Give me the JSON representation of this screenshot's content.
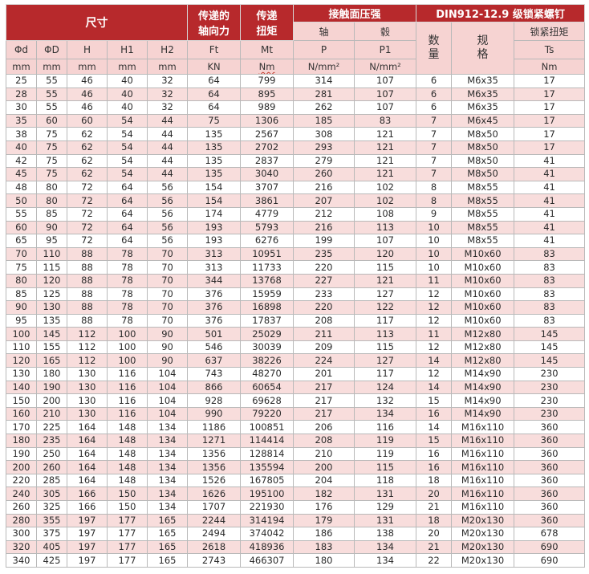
{
  "header": {
    "dims": "尺寸",
    "axial_force_1": "传递的",
    "axial_force_2": "轴向力",
    "torque_1": "传递",
    "torque_2": "扭矩",
    "contact_pressure": "接触面压强",
    "screw_title": "DIN912-12.9 级锁紧螺钉",
    "shaft": "轴",
    "hub": "毂",
    "qty_1": "数",
    "qty_2": "量",
    "spec_1": "规",
    "spec_2": "格",
    "lock_torque": "锁紧扭矩"
  },
  "columns": [
    "Φd",
    "ΦD",
    "H",
    "H1",
    "H2",
    "Ft",
    "Mt",
    "P",
    "P1",
    "Ts"
  ],
  "units": [
    "mm",
    "mm",
    "mm",
    "mm",
    "mm",
    "KN",
    "Nm",
    "N/mm²",
    "N/mm²",
    "Nm"
  ],
  "rows": [
    [
      "25",
      "55",
      "46",
      "40",
      "32",
      "64",
      "799",
      "314",
      "107",
      "6",
      "M6x35",
      "17"
    ],
    [
      "28",
      "55",
      "46",
      "40",
      "32",
      "64",
      "895",
      "281",
      "107",
      "6",
      "M6x35",
      "17"
    ],
    [
      "30",
      "55",
      "46",
      "40",
      "32",
      "64",
      "989",
      "262",
      "107",
      "6",
      "M6x35",
      "17"
    ],
    [
      "35",
      "60",
      "60",
      "54",
      "44",
      "75",
      "1306",
      "185",
      "83",
      "7",
      "M6x45",
      "17"
    ],
    [
      "38",
      "75",
      "62",
      "54",
      "44",
      "135",
      "2567",
      "308",
      "121",
      "7",
      "M8x50",
      "17"
    ],
    [
      "40",
      "75",
      "62",
      "54",
      "44",
      "135",
      "2702",
      "293",
      "121",
      "7",
      "M8x50",
      "17"
    ],
    [
      "42",
      "75",
      "62",
      "54",
      "44",
      "135",
      "2837",
      "279",
      "121",
      "7",
      "M8x50",
      "41"
    ],
    [
      "45",
      "75",
      "62",
      "54",
      "44",
      "135",
      "3040",
      "260",
      "121",
      "7",
      "M8x50",
      "41"
    ],
    [
      "48",
      "80",
      "72",
      "64",
      "56",
      "154",
      "3707",
      "216",
      "102",
      "8",
      "M8x55",
      "41"
    ],
    [
      "50",
      "80",
      "72",
      "64",
      "56",
      "154",
      "3861",
      "207",
      "102",
      "8",
      "M8x55",
      "41"
    ],
    [
      "55",
      "85",
      "72",
      "64",
      "56",
      "174",
      "4779",
      "212",
      "108",
      "9",
      "M8x55",
      "41"
    ],
    [
      "60",
      "90",
      "72",
      "64",
      "56",
      "193",
      "5793",
      "216",
      "113",
      "10",
      "M8x55",
      "41"
    ],
    [
      "65",
      "95",
      "72",
      "64",
      "56",
      "193",
      "6276",
      "199",
      "107",
      "10",
      "M8x55",
      "41"
    ],
    [
      "70",
      "110",
      "88",
      "78",
      "70",
      "313",
      "10951",
      "235",
      "120",
      "10",
      "M10x60",
      "83"
    ],
    [
      "75",
      "115",
      "88",
      "78",
      "70",
      "313",
      "11733",
      "220",
      "115",
      "10",
      "M10x60",
      "83"
    ],
    [
      "80",
      "120",
      "88",
      "78",
      "70",
      "344",
      "13768",
      "227",
      "121",
      "11",
      "M10x60",
      "83"
    ],
    [
      "85",
      "125",
      "88",
      "78",
      "70",
      "376",
      "15959",
      "233",
      "127",
      "12",
      "M10x60",
      "83"
    ],
    [
      "90",
      "130",
      "88",
      "78",
      "70",
      "376",
      "16898",
      "220",
      "122",
      "12",
      "M10x60",
      "83"
    ],
    [
      "95",
      "135",
      "88",
      "78",
      "70",
      "376",
      "17837",
      "208",
      "117",
      "12",
      "M10x60",
      "83"
    ],
    [
      "100",
      "145",
      "112",
      "100",
      "90",
      "501",
      "25029",
      "211",
      "113",
      "11",
      "M12x80",
      "145"
    ],
    [
      "110",
      "155",
      "112",
      "100",
      "90",
      "546",
      "30039",
      "209",
      "115",
      "12",
      "M12x80",
      "145"
    ],
    [
      "120",
      "165",
      "112",
      "100",
      "90",
      "637",
      "38226",
      "224",
      "127",
      "14",
      "M12x80",
      "145"
    ],
    [
      "130",
      "180",
      "130",
      "116",
      "104",
      "743",
      "48270",
      "201",
      "117",
      "12",
      "M14x90",
      "230"
    ],
    [
      "140",
      "190",
      "130",
      "116",
      "104",
      "866",
      "60654",
      "217",
      "124",
      "14",
      "M14x90",
      "230"
    ],
    [
      "150",
      "200",
      "130",
      "116",
      "104",
      "928",
      "69628",
      "217",
      "132",
      "15",
      "M14x90",
      "230"
    ],
    [
      "160",
      "210",
      "130",
      "116",
      "104",
      "990",
      "79220",
      "217",
      "134",
      "16",
      "M14x90",
      "230"
    ],
    [
      "170",
      "225",
      "164",
      "148",
      "134",
      "1186",
      "100851",
      "206",
      "116",
      "14",
      "M16x110",
      "360"
    ],
    [
      "180",
      "235",
      "164",
      "148",
      "134",
      "1271",
      "114414",
      "208",
      "119",
      "15",
      "M16x110",
      "360"
    ],
    [
      "190",
      "250",
      "164",
      "148",
      "134",
      "1356",
      "128814",
      "210",
      "119",
      "16",
      "M16x110",
      "360"
    ],
    [
      "200",
      "260",
      "164",
      "148",
      "134",
      "1356",
      "135594",
      "200",
      "115",
      "16",
      "M16x110",
      "360"
    ],
    [
      "220",
      "285",
      "164",
      "148",
      "134",
      "1526",
      "167805",
      "204",
      "118",
      "18",
      "M16x110",
      "360"
    ],
    [
      "240",
      "305",
      "166",
      "150",
      "134",
      "1626",
      "195100",
      "182",
      "131",
      "20",
      "M16x110",
      "360"
    ],
    [
      "260",
      "325",
      "166",
      "150",
      "134",
      "1707",
      "221930",
      "176",
      "129",
      "21",
      "M16x110",
      "360"
    ],
    [
      "280",
      "355",
      "197",
      "177",
      "165",
      "2244",
      "314194",
      "179",
      "131",
      "18",
      "M20x130",
      "360"
    ],
    [
      "300",
      "375",
      "197",
      "177",
      "165",
      "2494",
      "374042",
      "186",
      "138",
      "20",
      "M20x130",
      "678"
    ],
    [
      "320",
      "405",
      "197",
      "177",
      "165",
      "2618",
      "418936",
      "183",
      "134",
      "21",
      "M20x130",
      "690"
    ],
    [
      "340",
      "425",
      "197",
      "177",
      "165",
      "2743",
      "466307",
      "180",
      "134",
      "22",
      "M20x130",
      "690"
    ]
  ]
}
